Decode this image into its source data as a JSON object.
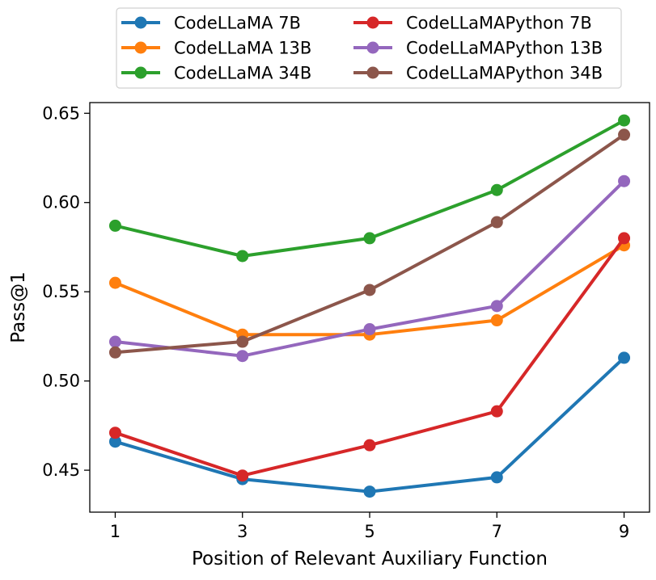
{
  "chart_data": {
    "type": "line",
    "title": "",
    "xlabel": "Position of Relevant Auxiliary Function",
    "ylabel": "Pass@1",
    "x": [
      1,
      3,
      5,
      7,
      9
    ],
    "xlim": [
      0.6,
      9.4
    ],
    "ylim": [
      0.4265,
      0.656
    ],
    "x_ticks": [
      1,
      3,
      5,
      7,
      9
    ],
    "x_tick_labels": [
      "1",
      "3",
      "5",
      "7",
      "9"
    ],
    "y_ticks": [
      0.45,
      0.5,
      0.55,
      0.6,
      0.65
    ],
    "y_tick_labels": [
      "0.45",
      "0.50",
      "0.55",
      "0.60",
      "0.65"
    ],
    "grid": false,
    "legend_position": "top-center",
    "legend_columns": 2,
    "series": [
      {
        "name": "CodeLLaMA 7B",
        "color": "#1f77b4",
        "values": [
          0.466,
          0.445,
          0.438,
          0.446,
          0.513
        ]
      },
      {
        "name": "CodeLLaMA 13B",
        "color": "#ff7f0e",
        "values": [
          0.555,
          0.526,
          0.526,
          0.534,
          0.576
        ]
      },
      {
        "name": "CodeLLaMA 34B",
        "color": "#2ca02c",
        "values": [
          0.587,
          0.57,
          0.58,
          0.607,
          0.646
        ]
      },
      {
        "name": "CodeLLaMAPython 7B",
        "color": "#d62728",
        "values": [
          0.471,
          0.447,
          0.464,
          0.483,
          0.58
        ]
      },
      {
        "name": "CodeLLaMAPython 13B",
        "color": "#9467bd",
        "values": [
          0.522,
          0.514,
          0.529,
          0.542,
          0.612
        ]
      },
      {
        "name": "CodeLLaMAPython 34B",
        "color": "#8c564b",
        "values": [
          0.516,
          0.522,
          0.551,
          0.589,
          0.638
        ]
      }
    ]
  }
}
